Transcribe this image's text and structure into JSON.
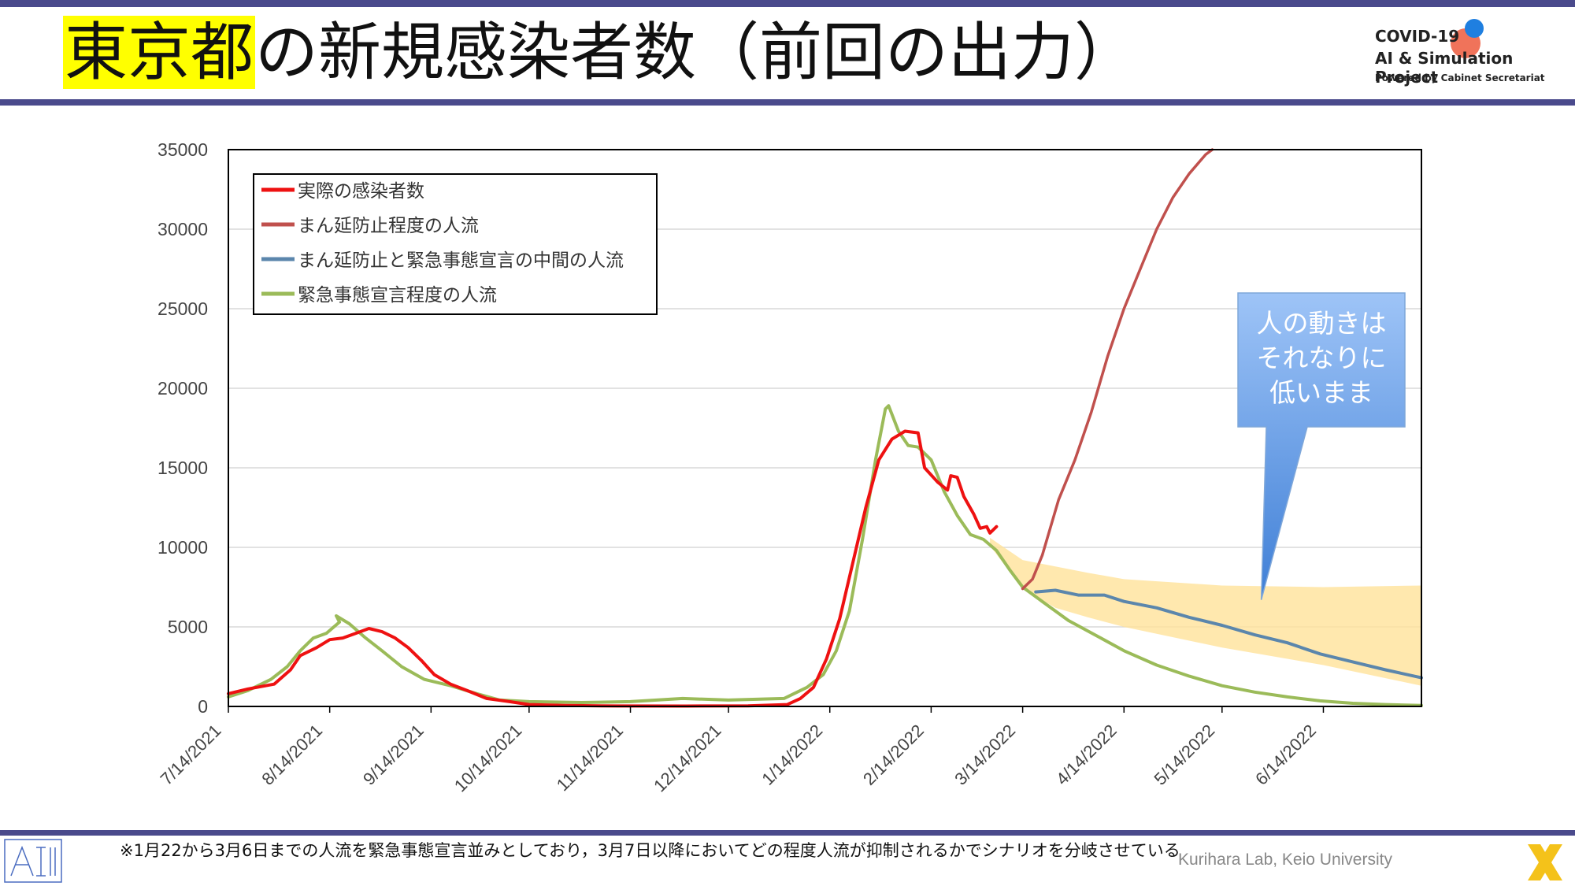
{
  "header": {
    "title_highlight": "東京都",
    "title_rest": "の新規感染者数（前回の出力）"
  },
  "logo": {
    "line1": "COVID-19",
    "line2": "AI & Simulation Project",
    "line3": "Powered by Cabinet Secretariat"
  },
  "footer": {
    "note": "※1月22から3月6日までの人流を緊急事態宣言並みとしており，3月7日以降においてどの程度人流が抑制されるかでシナリオを分岐させている",
    "lab": "Kurihara Lab, Keio University"
  },
  "chart_data": {
    "type": "line",
    "ylim": [
      0,
      35000
    ],
    "y_ticks": [
      0,
      5000,
      10000,
      15000,
      20000,
      25000,
      30000,
      35000
    ],
    "x_tick_labels": [
      "7/14/2021",
      "8/14/2021",
      "9/14/2021",
      "10/14/2021",
      "11/14/2021",
      "12/14/2021",
      "1/14/2022",
      "2/14/2022",
      "3/14/2022",
      "4/14/2022",
      "5/14/2022",
      "6/14/2022"
    ],
    "x_tick_dates": [
      "2021-07-14",
      "2021-08-14",
      "2021-09-14",
      "2021-10-14",
      "2021-11-14",
      "2021-12-14",
      "2022-01-14",
      "2022-02-14",
      "2022-03-14",
      "2022-04-14",
      "2022-05-14",
      "2022-06-14"
    ],
    "x_range": [
      "2021-07-14",
      "2022-07-14"
    ],
    "grid": "horizontal",
    "legend_position": "top-left",
    "series": [
      {
        "name": "実際の感染者数",
        "color": "#ee1111",
        "width": 4,
        "points": [
          [
            "2021-07-14",
            800
          ],
          [
            "2021-07-20",
            1100
          ],
          [
            "2021-07-28",
            1400
          ],
          [
            "2021-08-02",
            2300
          ],
          [
            "2021-08-05",
            3200
          ],
          [
            "2021-08-10",
            3700
          ],
          [
            "2021-08-14",
            4200
          ],
          [
            "2021-08-18",
            4300
          ],
          [
            "2021-08-22",
            4600
          ],
          [
            "2021-08-26",
            4900
          ],
          [
            "2021-08-30",
            4700
          ],
          [
            "2021-09-03",
            4300
          ],
          [
            "2021-09-07",
            3700
          ],
          [
            "2021-09-11",
            2900
          ],
          [
            "2021-09-15",
            2000
          ],
          [
            "2021-09-20",
            1400
          ],
          [
            "2021-09-25",
            1000
          ],
          [
            "2021-10-01",
            500
          ],
          [
            "2021-10-08",
            300
          ],
          [
            "2021-10-14",
            120
          ],
          [
            "2021-10-25",
            60
          ],
          [
            "2021-11-10",
            30
          ],
          [
            "2021-12-01",
            25
          ],
          [
            "2021-12-20",
            40
          ],
          [
            "2022-01-01",
            120
          ],
          [
            "2022-01-05",
            500
          ],
          [
            "2022-01-09",
            1200
          ],
          [
            "2022-01-13",
            3000
          ],
          [
            "2022-01-17",
            5500
          ],
          [
            "2022-01-21",
            9000
          ],
          [
            "2022-01-25",
            12500
          ],
          [
            "2022-01-29",
            15500
          ],
          [
            "2022-02-02",
            16800
          ],
          [
            "2022-02-06",
            17300
          ],
          [
            "2022-02-10",
            17200
          ],
          [
            "2022-02-12",
            15000
          ],
          [
            "2022-02-16",
            14100
          ],
          [
            "2022-02-19",
            13600
          ],
          [
            "2022-02-20",
            14500
          ],
          [
            "2022-02-22",
            14400
          ],
          [
            "2022-02-24",
            13200
          ],
          [
            "2022-02-27",
            12100
          ],
          [
            "2022-03-01",
            11200
          ],
          [
            "2022-03-03",
            11300
          ],
          [
            "2022-03-04",
            10900
          ],
          [
            "2022-03-06",
            11300
          ]
        ]
      },
      {
        "name": "まん延防止程度の人流",
        "color": "#c0504d",
        "width": 3.5,
        "points": [
          [
            "2022-03-14",
            7400
          ],
          [
            "2022-03-17",
            8000
          ],
          [
            "2022-03-20",
            9500
          ],
          [
            "2022-03-25",
            13000
          ],
          [
            "2022-03-30",
            15500
          ],
          [
            "2022-04-04",
            18500
          ],
          [
            "2022-04-09",
            22000
          ],
          [
            "2022-04-14",
            25000
          ],
          [
            "2022-04-19",
            27500
          ],
          [
            "2022-04-24",
            30000
          ],
          [
            "2022-04-29",
            32000
          ],
          [
            "2022-05-04",
            33500
          ],
          [
            "2022-05-09",
            34700
          ],
          [
            "2022-05-11",
            35000
          ]
        ]
      },
      {
        "name": "まん延防止と緊急事態宣言の中間の人流",
        "color": "#5b86ac",
        "width": 4,
        "points": [
          [
            "2022-03-18",
            7200
          ],
          [
            "2022-03-24",
            7300
          ],
          [
            "2022-03-31",
            7000
          ],
          [
            "2022-04-08",
            7000
          ],
          [
            "2022-04-14",
            6600
          ],
          [
            "2022-04-24",
            6200
          ],
          [
            "2022-05-04",
            5600
          ],
          [
            "2022-05-14",
            5100
          ],
          [
            "2022-05-24",
            4500
          ],
          [
            "2022-06-03",
            4000
          ],
          [
            "2022-06-13",
            3300
          ],
          [
            "2022-06-23",
            2800
          ],
          [
            "2022-07-03",
            2300
          ],
          [
            "2022-07-14",
            1800
          ]
        ]
      },
      {
        "name": "緊急事態宣言程度の人流",
        "color": "#9bbb59",
        "width": 4,
        "points": [
          [
            "2021-07-14",
            600
          ],
          [
            "2021-07-20",
            1000
          ],
          [
            "2021-07-27",
            1700
          ],
          [
            "2021-08-01",
            2500
          ],
          [
            "2021-08-05",
            3500
          ],
          [
            "2021-08-09",
            4300
          ],
          [
            "2021-08-13",
            4600
          ],
          [
            "2021-08-17",
            5300
          ],
          [
            "2021-08-16",
            5700
          ],
          [
            "2021-08-20",
            5200
          ],
          [
            "2021-08-25",
            4300
          ],
          [
            "2021-08-30",
            3500
          ],
          [
            "2021-09-05",
            2500
          ],
          [
            "2021-09-12",
            1700
          ],
          [
            "2021-09-20",
            1300
          ],
          [
            "2021-09-28",
            800
          ],
          [
            "2021-10-05",
            400
          ],
          [
            "2021-10-14",
            300
          ],
          [
            "2021-10-30",
            250
          ],
          [
            "2021-11-14",
            300
          ],
          [
            "2021-11-30",
            500
          ],
          [
            "2021-12-14",
            400
          ],
          [
            "2021-12-31",
            500
          ],
          [
            "2022-01-07",
            1200
          ],
          [
            "2022-01-12",
            2000
          ],
          [
            "2022-01-16",
            3500
          ],
          [
            "2022-01-20",
            6000
          ],
          [
            "2022-01-24",
            10500
          ],
          [
            "2022-01-28",
            15500
          ],
          [
            "2022-01-31",
            18700
          ],
          [
            "2022-02-01",
            18900
          ],
          [
            "2022-02-04",
            17300
          ],
          [
            "2022-02-07",
            16400
          ],
          [
            "2022-02-10",
            16300
          ],
          [
            "2022-02-14",
            15500
          ],
          [
            "2022-02-18",
            13500
          ],
          [
            "2022-02-22",
            12000
          ],
          [
            "2022-02-26",
            10800
          ],
          [
            "2022-03-02",
            10500
          ],
          [
            "2022-03-06",
            9800
          ],
          [
            "2022-03-10",
            8600
          ],
          [
            "2022-03-14",
            7500
          ],
          [
            "2022-03-20",
            6600
          ],
          [
            "2022-03-28",
            5400
          ],
          [
            "2022-04-06",
            4400
          ],
          [
            "2022-04-14",
            3500
          ],
          [
            "2022-04-24",
            2600
          ],
          [
            "2022-05-04",
            1900
          ],
          [
            "2022-05-14",
            1300
          ],
          [
            "2022-05-24",
            900
          ],
          [
            "2022-06-03",
            600
          ],
          [
            "2022-06-13",
            350
          ],
          [
            "2022-06-23",
            200
          ],
          [
            "2022-07-03",
            120
          ],
          [
            "2022-07-14",
            60
          ]
        ]
      }
    ],
    "band": {
      "color": "#ffe29a",
      "upper": [
        [
          "2022-03-04",
          10600
        ],
        [
          "2022-03-14",
          9200
        ],
        [
          "2022-03-24",
          8800
        ],
        [
          "2022-04-03",
          8400
        ],
        [
          "2022-04-14",
          8000
        ],
        [
          "2022-05-14",
          7600
        ],
        [
          "2022-06-14",
          7500
        ],
        [
          "2022-07-14",
          7600
        ]
      ],
      "lower": [
        [
          "2022-03-04",
          10100
        ],
        [
          "2022-03-14",
          7400
        ],
        [
          "2022-03-24",
          6200
        ],
        [
          "2022-04-03",
          5600
        ],
        [
          "2022-04-14",
          5000
        ],
        [
          "2022-05-14",
          3700
        ],
        [
          "2022-06-14",
          2600
        ],
        [
          "2022-07-14",
          1300
        ]
      ]
    },
    "callout": {
      "lines": [
        "人の動きは",
        "それなりに",
        "低いまま"
      ],
      "pointer_date": "2022-05-26",
      "pointer_value": 6700
    }
  }
}
